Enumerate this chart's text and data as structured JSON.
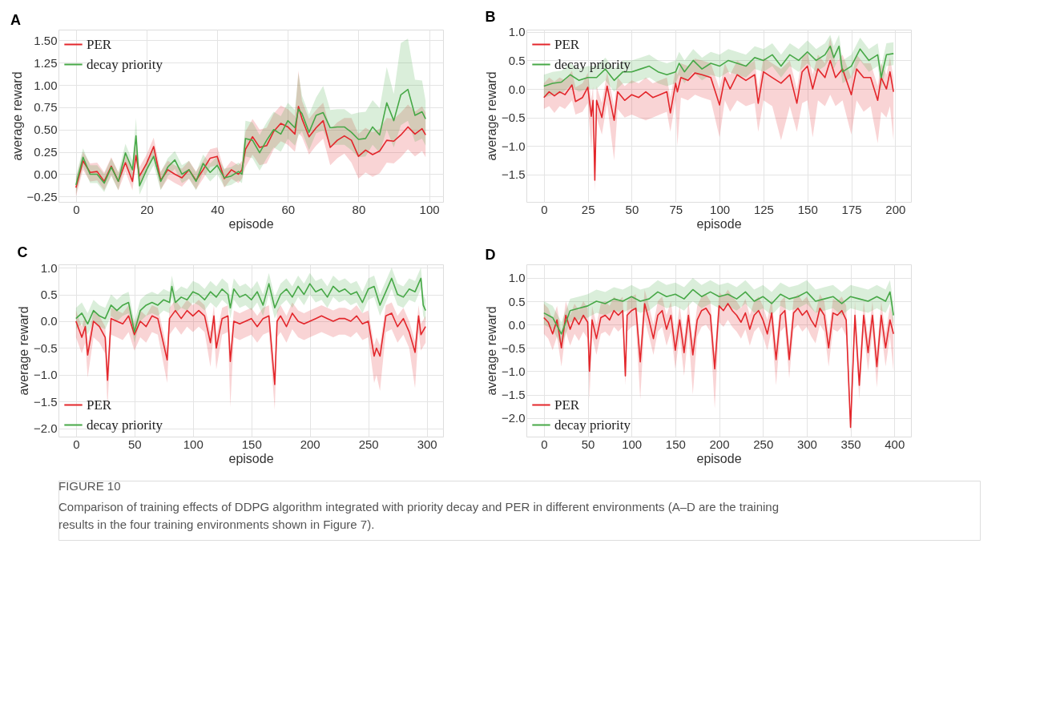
{
  "chart_data": [
    {
      "type": "line",
      "title": "A",
      "xlabel": "episode",
      "ylabel": "average reward",
      "xlim": [
        -4.95,
        103.95
      ],
      "xticks": [
        0,
        20,
        40,
        60,
        80,
        100
      ],
      "ylim": [
        -0.31,
        1.62
      ],
      "yticks": [
        {
          "value": -0.25,
          "label": "−0.25"
        },
        {
          "value": 0,
          "label": "0.00"
        },
        {
          "value": 0.25,
          "label": "0.25"
        },
        {
          "value": 0.5,
          "label": "0.50"
        },
        {
          "value": 0.75,
          "label": "0.75"
        },
        {
          "value": 1,
          "label": "1.00"
        },
        {
          "value": 1.25,
          "label": "1.25"
        },
        {
          "value": 1.5,
          "label": "1.50"
        }
      ],
      "grid": true,
      "legend": "top left",
      "line_style": "solid",
      "marker": "none",
      "annotations": [
        "FIGURE 10",
        "Comparison of training effects of DDPG algorithm integrated with priority decay and PER in different environments (A–D are the training results in the four training environments shown in Figure 7)."
      ],
      "series": [
        {
          "name": "PER",
          "color": "#e3262b",
          "x": [
            0,
            2,
            4,
            6,
            8,
            10,
            12,
            14,
            16,
            17,
            18,
            20,
            22,
            24,
            26,
            28,
            30,
            32,
            34,
            36,
            38,
            40,
            42,
            44,
            46,
            47,
            48,
            50,
            52,
            54,
            56,
            58,
            60,
            62,
            63,
            64,
            66,
            68,
            70,
            72,
            74,
            76,
            78,
            80,
            82,
            84,
            86,
            88,
            90,
            92,
            94,
            96,
            98,
            99
          ],
          "values": [
            -0.15,
            0.15,
            0.02,
            0.03,
            -0.08,
            0.09,
            -0.08,
            0.13,
            -0.08,
            0.21,
            -0.02,
            0.12,
            0.31,
            -0.07,
            0.05,
            0.0,
            -0.04,
            0.05,
            -0.07,
            0.05,
            0.18,
            0.2,
            -0.05,
            0.05,
            0.0,
            0.05,
            0.28,
            0.42,
            0.3,
            0.32,
            0.48,
            0.57,
            0.53,
            0.45,
            0.76,
            0.62,
            0.42,
            0.52,
            0.6,
            0.3,
            0.38,
            0.43,
            0.38,
            0.2,
            0.27,
            0.22,
            0.26,
            0.38,
            0.37,
            0.44,
            0.53,
            0.45,
            0.51,
            0.44
          ],
          "lower": [
            -0.25,
            0.05,
            -0.08,
            -0.07,
            -0.18,
            -0.01,
            -0.18,
            0.03,
            -0.18,
            0.11,
            -0.12,
            0.02,
            0.21,
            -0.17,
            -0.05,
            -0.1,
            -0.14,
            -0.05,
            -0.17,
            -0.05,
            0.08,
            0.1,
            -0.15,
            -0.05,
            -0.1,
            -0.05,
            0.08,
            0.22,
            0.1,
            0.12,
            0.28,
            0.37,
            0.33,
            0.25,
            0.46,
            0.42,
            0.22,
            0.32,
            0.4,
            0.1,
            0.18,
            0.23,
            0.13,
            -0.05,
            0.02,
            -0.03,
            0.01,
            0.13,
            0.12,
            0.19,
            0.28,
            0.2,
            0.26,
            0.19
          ],
          "upper": [
            -0.05,
            0.25,
            0.12,
            0.13,
            0.02,
            0.19,
            0.02,
            0.23,
            0.02,
            0.31,
            0.08,
            0.22,
            0.41,
            0.03,
            0.15,
            0.1,
            0.06,
            0.15,
            0.03,
            0.15,
            0.28,
            0.3,
            0.05,
            0.15,
            0.1,
            0.15,
            0.48,
            0.62,
            0.5,
            0.52,
            0.68,
            0.77,
            0.73,
            0.65,
            1.16,
            0.82,
            0.62,
            0.72,
            0.8,
            0.5,
            0.58,
            0.63,
            0.63,
            0.45,
            0.52,
            0.47,
            0.51,
            0.63,
            0.62,
            0.69,
            0.78,
            0.7,
            0.76,
            0.69
          ]
        },
        {
          "name": "decay priority",
          "color": "#47a847",
          "x": [
            0,
            2,
            4,
            6,
            8,
            10,
            12,
            14,
            16,
            17,
            18,
            20,
            22,
            24,
            26,
            28,
            30,
            32,
            34,
            36,
            38,
            40,
            42,
            44,
            46,
            47,
            48,
            50,
            52,
            54,
            56,
            58,
            60,
            62,
            63,
            64,
            66,
            68,
            70,
            72,
            74,
            76,
            78,
            80,
            82,
            84,
            86,
            88,
            90,
            92,
            94,
            96,
            98,
            99
          ],
          "values": [
            -0.12,
            0.19,
            0.0,
            0.0,
            -0.1,
            0.08,
            -0.08,
            0.24,
            0.05,
            0.43,
            -0.13,
            0.05,
            0.2,
            -0.08,
            0.08,
            0.16,
            0.0,
            0.05,
            -0.08,
            0.12,
            0.02,
            0.1,
            -0.04,
            -0.02,
            0.03,
            0.0,
            0.4,
            0.38,
            0.24,
            0.38,
            0.5,
            0.45,
            0.6,
            0.52,
            0.73,
            0.68,
            0.47,
            0.66,
            0.69,
            0.52,
            0.53,
            0.53,
            0.47,
            0.39,
            0.4,
            0.53,
            0.44,
            0.8,
            0.6,
            0.89,
            0.95,
            0.66,
            0.7,
            0.62
          ],
          "lower": [
            -0.22,
            0.09,
            -0.1,
            -0.1,
            -0.2,
            -0.02,
            -0.18,
            0.14,
            -0.05,
            0.23,
            -0.23,
            -0.05,
            0.1,
            -0.18,
            -0.02,
            0.06,
            -0.1,
            -0.05,
            -0.18,
            0.02,
            -0.08,
            0.0,
            -0.14,
            -0.12,
            -0.07,
            -0.1,
            0.2,
            0.18,
            0.04,
            0.18,
            0.3,
            0.25,
            0.4,
            0.32,
            0.43,
            0.48,
            0.27,
            0.46,
            0.49,
            0.32,
            0.33,
            0.33,
            0.27,
            0.19,
            0.2,
            0.33,
            0.24,
            0.5,
            0.3,
            0.55,
            0.6,
            0.36,
            0.4,
            0.32
          ],
          "upper": [
            -0.02,
            0.29,
            0.1,
            0.1,
            0.0,
            0.18,
            0.02,
            0.34,
            0.15,
            0.63,
            -0.03,
            0.15,
            0.3,
            0.02,
            0.18,
            0.26,
            0.1,
            0.15,
            0.02,
            0.22,
            0.12,
            0.2,
            0.06,
            0.08,
            0.13,
            0.1,
            0.6,
            0.58,
            0.44,
            0.58,
            0.7,
            0.65,
            0.8,
            0.72,
            1.13,
            0.88,
            0.67,
            0.86,
            0.99,
            0.72,
            0.73,
            0.73,
            0.67,
            0.69,
            0.7,
            0.83,
            0.74,
            1.2,
            0.9,
            1.47,
            1.52,
            1.06,
            1.05,
            0.82
          ]
        }
      ]
    },
    {
      "type": "line",
      "title": "B",
      "xlabel": "episode",
      "ylabel": "average reward",
      "xlim": [
        -9.95,
        208.95
      ],
      "xticks": [
        0,
        25,
        50,
        75,
        100,
        125,
        150,
        175,
        200
      ],
      "ylim": [
        -1.98,
        1.04
      ],
      "yticks": [
        {
          "value": -1.5,
          "label": "−1.5"
        },
        {
          "value": -1,
          "label": "−1.0"
        },
        {
          "value": -0.5,
          "label": "−0.5"
        },
        {
          "value": 0,
          "label": "0.0"
        },
        {
          "value": 0.5,
          "label": "0.5"
        },
        {
          "value": 1,
          "label": "1.0"
        }
      ],
      "grid": true,
      "legend": "top left",
      "line_style": "solid",
      "marker": "none",
      "series": [
        {
          "name": "PER",
          "color": "#e3262b",
          "x": [
            0,
            3,
            6,
            9,
            12,
            16,
            18,
            22,
            25,
            27,
            28,
            29,
            30,
            33,
            36,
            40,
            42,
            46,
            50,
            54,
            58,
            62,
            66,
            70,
            72,
            75,
            76,
            78,
            82,
            86,
            90,
            95,
            100,
            103,
            106,
            110,
            115,
            120,
            122,
            125,
            130,
            135,
            140,
            144,
            147,
            150,
            153,
            156,
            160,
            163,
            166,
            170,
            175,
            178,
            182,
            186,
            190,
            192,
            195,
            197,
            199
          ],
          "values": [
            -0.15,
            -0.05,
            -0.12,
            -0.05,
            -0.1,
            0.07,
            -0.22,
            -0.15,
            0.03,
            -0.48,
            -0.2,
            -1.6,
            -0.2,
            -0.5,
            0.05,
            -0.55,
            -0.05,
            -0.2,
            -0.1,
            -0.15,
            -0.05,
            -0.15,
            -0.1,
            -0.05,
            -0.42,
            0.1,
            -0.05,
            0.2,
            0.15,
            0.28,
            0.25,
            0.2,
            -0.28,
            0.2,
            0.0,
            0.25,
            0.15,
            0.25,
            -0.25,
            0.3,
            0.2,
            0.1,
            0.25,
            -0.25,
            0.3,
            0.4,
            0.0,
            0.35,
            0.2,
            0.5,
            0.2,
            0.35,
            -0.1,
            0.35,
            0.2,
            0.2,
            -0.2,
            0.2,
            0.0,
            0.3,
            -0.05
          ],
          "lower": [
            -0.35,
            -0.3,
            -0.42,
            -0.3,
            -0.35,
            -0.2,
            -0.45,
            -0.4,
            -0.25,
            -1.1,
            -0.5,
            -1.8,
            -0.5,
            -0.8,
            -0.25,
            -1.25,
            -0.35,
            -0.5,
            -0.45,
            -0.5,
            -0.55,
            -0.5,
            -0.45,
            -0.4,
            -0.75,
            -0.2,
            -1.0,
            -0.15,
            -0.2,
            -0.1,
            -0.15,
            -0.2,
            -0.85,
            -0.2,
            -0.4,
            -0.2,
            -0.3,
            -0.25,
            -0.75,
            -0.2,
            -0.3,
            -0.9,
            -0.3,
            -0.75,
            -0.25,
            -0.2,
            -0.85,
            -0.2,
            -0.3,
            -0.1,
            -0.3,
            -0.2,
            -0.8,
            -0.2,
            -0.4,
            -0.3,
            -0.95,
            -0.4,
            -0.5,
            -0.3,
            -0.9
          ],
          "upper": [
            0.1,
            0.2,
            0.13,
            0.2,
            0.15,
            0.32,
            0.03,
            0.1,
            0.28,
            -0.2,
            0.05,
            -1.4,
            0.05,
            -0.25,
            0.3,
            -0.3,
            0.2,
            0.05,
            0.15,
            0.1,
            0.2,
            0.1,
            0.15,
            0.2,
            -0.15,
            0.35,
            0.25,
            0.45,
            0.4,
            0.53,
            0.5,
            0.45,
            0.0,
            0.45,
            0.25,
            0.5,
            0.4,
            0.5,
            0.0,
            0.55,
            0.45,
            0.35,
            0.5,
            0.0,
            0.55,
            0.65,
            0.25,
            0.6,
            0.45,
            0.9,
            0.45,
            0.6,
            0.2,
            0.6,
            0.45,
            0.45,
            0.05,
            0.45,
            0.25,
            0.55,
            0.2
          ]
        },
        {
          "name": "decay priority",
          "color": "#47a847",
          "x": [
            0,
            5,
            10,
            15,
            20,
            25,
            30,
            35,
            40,
            45,
            50,
            55,
            60,
            65,
            70,
            75,
            77,
            80,
            85,
            90,
            95,
            100,
            105,
            110,
            115,
            120,
            125,
            130,
            135,
            140,
            145,
            150,
            155,
            160,
            163,
            165,
            168,
            170,
            175,
            180,
            185,
            190,
            192,
            195,
            199
          ],
          "values": [
            0.05,
            0.1,
            0.12,
            0.25,
            0.15,
            0.2,
            0.2,
            0.35,
            0.15,
            0.3,
            0.3,
            0.35,
            0.4,
            0.3,
            0.25,
            0.3,
            0.45,
            0.3,
            0.5,
            0.35,
            0.45,
            0.4,
            0.5,
            0.45,
            0.4,
            0.55,
            0.5,
            0.6,
            0.4,
            0.6,
            0.5,
            0.65,
            0.5,
            0.6,
            0.75,
            0.55,
            0.75,
            0.3,
            0.4,
            0.7,
            0.5,
            0.6,
            0.2,
            0.6,
            0.62
          ],
          "lower": [
            -0.15,
            -0.1,
            -0.08,
            0.05,
            -0.05,
            0.0,
            0.0,
            0.15,
            -0.05,
            0.1,
            0.1,
            0.15,
            0.2,
            0.1,
            0.05,
            0.1,
            0.25,
            0.1,
            0.3,
            0.15,
            0.25,
            0.2,
            0.3,
            0.25,
            0.2,
            0.35,
            0.3,
            0.4,
            0.2,
            0.4,
            0.3,
            0.45,
            0.3,
            0.4,
            0.55,
            0.35,
            0.55,
            0.1,
            0.2,
            0.5,
            0.3,
            0.4,
            0.0,
            0.4,
            0.42
          ],
          "upper": [
            0.25,
            0.3,
            0.32,
            0.45,
            0.35,
            0.4,
            0.4,
            0.55,
            0.35,
            0.5,
            0.5,
            0.55,
            0.6,
            0.5,
            0.45,
            0.5,
            0.65,
            0.5,
            0.7,
            0.55,
            0.65,
            0.6,
            0.7,
            0.65,
            0.6,
            0.75,
            0.7,
            0.8,
            0.6,
            0.8,
            0.7,
            0.85,
            0.7,
            0.8,
            0.95,
            0.75,
            0.95,
            0.5,
            0.6,
            0.9,
            0.7,
            0.8,
            0.4,
            0.8,
            0.82
          ]
        }
      ]
    },
    {
      "type": "line",
      "title": "C",
      "xlabel": "episode",
      "ylabel": "average reward",
      "xlim": [
        -14.95,
        313.95
      ],
      "xticks": [
        0,
        50,
        100,
        150,
        200,
        250,
        300
      ],
      "ylim": [
        -2.15,
        1.06
      ],
      "yticks": [
        {
          "value": -2,
          "label": "−2.0"
        },
        {
          "value": -1.5,
          "label": "−1.5"
        },
        {
          "value": -1,
          "label": "−1.0"
        },
        {
          "value": -0.5,
          "label": "−0.5"
        },
        {
          "value": 0,
          "label": "0.0"
        },
        {
          "value": 0.5,
          "label": "0.5"
        },
        {
          "value": 1,
          "label": "1.0"
        }
      ],
      "grid": true,
      "legend": "bottom left",
      "line_style": "solid",
      "marker": "none",
      "series": [
        {
          "name": "PER",
          "color": "#e3262b",
          "x": [
            0,
            5,
            8,
            10,
            15,
            20,
            25,
            27,
            30,
            35,
            40,
            45,
            50,
            55,
            60,
            65,
            70,
            78,
            80,
            85,
            90,
            95,
            100,
            105,
            110,
            115,
            118,
            120,
            125,
            130,
            132,
            135,
            140,
            145,
            150,
            155,
            160,
            165,
            170,
            172,
            175,
            180,
            185,
            190,
            195,
            200,
            205,
            210,
            215,
            220,
            225,
            230,
            235,
            240,
            245,
            250,
            255,
            257,
            260,
            265,
            270,
            275,
            280,
            285,
            290,
            293,
            295,
            299
          ],
          "values": [
            0.0,
            -0.3,
            -0.1,
            -0.63,
            0.0,
            -0.1,
            -0.3,
            -1.1,
            0.05,
            0.0,
            -0.05,
            0.1,
            -0.25,
            0.0,
            -0.1,
            0.1,
            0.05,
            -0.72,
            0.05,
            0.2,
            0.05,
            0.2,
            0.1,
            0.2,
            0.1,
            -0.4,
            0.1,
            -0.5,
            0.05,
            0.1,
            -0.75,
            0.0,
            -0.05,
            0.0,
            0.05,
            -0.1,
            0.05,
            0.1,
            -1.18,
            0.0,
            0.1,
            -0.1,
            0.15,
            0.0,
            -0.05,
            0.0,
            0.05,
            0.1,
            0.05,
            0.0,
            0.05,
            0.05,
            0.0,
            0.1,
            -0.05,
            0.0,
            -0.65,
            -0.5,
            -0.65,
            0.1,
            0.15,
            -0.1,
            0.05,
            -0.2,
            -0.58,
            0.1,
            -0.25,
            -0.1
          ],
          "lower": [
            -0.3,
            -0.6,
            -0.4,
            -1.05,
            -0.3,
            -0.4,
            -0.6,
            -1.6,
            -0.25,
            -0.3,
            -0.35,
            -0.2,
            -0.55,
            -0.3,
            -0.4,
            -0.2,
            -0.25,
            -1.15,
            -0.25,
            -0.1,
            -0.25,
            -0.1,
            -0.2,
            -0.1,
            -0.2,
            -0.85,
            -0.2,
            -0.9,
            -0.25,
            -0.2,
            -1.6,
            -0.3,
            -0.35,
            -0.3,
            -0.25,
            -0.4,
            -0.25,
            -0.2,
            -1.65,
            -0.3,
            -0.2,
            -0.4,
            -0.15,
            -0.3,
            -0.35,
            -0.3,
            -0.25,
            -0.2,
            -0.25,
            -0.3,
            -0.25,
            -0.25,
            -0.3,
            -0.2,
            -0.35,
            -0.3,
            -1.15,
            -1.0,
            -1.3,
            -0.2,
            -0.15,
            -0.4,
            -0.25,
            -0.5,
            -1.25,
            -0.2,
            -0.55,
            -0.4
          ],
          "upper": [
            0.2,
            -0.1,
            0.1,
            -0.43,
            0.2,
            0.1,
            -0.1,
            -0.9,
            0.25,
            0.2,
            0.15,
            0.3,
            -0.05,
            0.2,
            0.1,
            0.3,
            0.25,
            -0.52,
            0.25,
            0.4,
            0.25,
            0.4,
            0.3,
            0.4,
            0.3,
            -0.2,
            0.3,
            -0.3,
            0.25,
            0.3,
            -0.55,
            0.2,
            0.15,
            0.2,
            0.25,
            0.1,
            0.25,
            0.3,
            -0.98,
            0.2,
            0.3,
            0.1,
            0.35,
            0.2,
            0.15,
            0.2,
            0.25,
            0.3,
            0.25,
            0.2,
            0.25,
            0.25,
            0.2,
            0.3,
            0.15,
            0.2,
            -0.45,
            -0.3,
            -0.45,
            0.3,
            0.35,
            0.1,
            0.25,
            0.0,
            -0.38,
            0.3,
            -0.05,
            0.1
          ]
        },
        {
          "name": "decay priority",
          "color": "#47a847",
          "x": [
            0,
            5,
            10,
            15,
            20,
            25,
            30,
            35,
            40,
            45,
            50,
            55,
            60,
            65,
            70,
            75,
            80,
            82,
            85,
            90,
            95,
            100,
            105,
            110,
            115,
            120,
            125,
            130,
            132,
            135,
            140,
            145,
            150,
            155,
            160,
            165,
            170,
            175,
            180,
            185,
            190,
            195,
            200,
            205,
            210,
            215,
            220,
            225,
            230,
            235,
            240,
            245,
            250,
            255,
            260,
            265,
            270,
            275,
            280,
            285,
            290,
            295,
            297,
            299
          ],
          "values": [
            0.05,
            0.15,
            -0.05,
            0.2,
            0.1,
            0.05,
            0.3,
            0.2,
            0.3,
            0.35,
            -0.2,
            0.2,
            0.3,
            0.35,
            0.3,
            0.4,
            0.35,
            0.65,
            0.35,
            0.45,
            0.4,
            0.55,
            0.5,
            0.4,
            0.55,
            0.45,
            0.6,
            0.5,
            0.25,
            0.6,
            0.45,
            0.5,
            0.4,
            0.55,
            0.3,
            0.7,
            0.25,
            0.5,
            0.6,
            0.45,
            0.65,
            0.5,
            0.7,
            0.55,
            0.6,
            0.45,
            0.65,
            0.55,
            0.6,
            0.5,
            0.55,
            0.35,
            0.6,
            0.65,
            0.3,
            0.55,
            0.8,
            0.5,
            0.45,
            0.6,
            0.55,
            0.8,
            0.3,
            0.2
          ],
          "lower": [
            -0.15,
            -0.05,
            -0.25,
            0.0,
            -0.1,
            -0.15,
            0.1,
            0.0,
            0.1,
            0.15,
            -0.4,
            0.0,
            0.1,
            0.15,
            0.1,
            0.2,
            0.15,
            0.45,
            0.15,
            0.25,
            0.2,
            0.35,
            0.3,
            0.2,
            0.35,
            0.25,
            0.4,
            0.3,
            0.05,
            0.4,
            0.25,
            0.3,
            0.2,
            0.35,
            0.1,
            0.5,
            0.05,
            0.3,
            0.4,
            0.25,
            0.45,
            0.3,
            0.5,
            0.35,
            0.4,
            0.25,
            0.45,
            0.35,
            0.4,
            0.3,
            0.35,
            0.15,
            0.4,
            0.45,
            0.1,
            0.35,
            0.6,
            0.3,
            0.25,
            0.4,
            0.35,
            0.6,
            0.1,
            0.0
          ],
          "upper": [
            0.25,
            0.35,
            0.15,
            0.4,
            0.3,
            0.25,
            0.5,
            0.4,
            0.5,
            0.55,
            0.0,
            0.4,
            0.5,
            0.55,
            0.5,
            0.6,
            0.55,
            0.85,
            0.55,
            0.65,
            0.6,
            0.75,
            0.7,
            0.6,
            0.75,
            0.65,
            0.8,
            0.7,
            0.45,
            0.8,
            0.65,
            0.7,
            0.6,
            0.75,
            0.5,
            0.9,
            0.45,
            0.7,
            0.8,
            0.65,
            0.85,
            0.7,
            0.9,
            0.75,
            0.8,
            0.65,
            0.85,
            0.75,
            0.8,
            0.7,
            0.75,
            0.55,
            0.8,
            0.85,
            0.5,
            0.75,
            1.0,
            0.7,
            0.65,
            0.8,
            0.75,
            1.0,
            0.5,
            0.4
          ]
        }
      ]
    },
    {
      "type": "line",
      "title": "D",
      "xlabel": "episode",
      "ylabel": "average reward",
      "xlim": [
        -19.95,
        418.95
      ],
      "xticks": [
        0,
        50,
        100,
        150,
        200,
        250,
        300,
        350,
        400
      ],
      "ylim": [
        -2.4,
        1.29
      ],
      "yticks": [
        {
          "value": -2,
          "label": "−2.0"
        },
        {
          "value": -1.5,
          "label": "−1.5"
        },
        {
          "value": -1,
          "label": "−1.0"
        },
        {
          "value": -0.5,
          "label": "−0.5"
        },
        {
          "value": 0,
          "label": "0.0"
        },
        {
          "value": 0.5,
          "label": "0.5"
        },
        {
          "value": 1,
          "label": "1.0"
        }
      ],
      "grid": true,
      "legend": "bottom left",
      "line_style": "solid",
      "marker": "none",
      "series": [
        {
          "name": "PER",
          "color": "#e3262b",
          "x": [
            0,
            5,
            10,
            15,
            20,
            25,
            30,
            35,
            40,
            45,
            50,
            52,
            55,
            60,
            65,
            70,
            75,
            80,
            85,
            90,
            93,
            95,
            100,
            105,
            110,
            115,
            120,
            125,
            130,
            135,
            140,
            145,
            150,
            155,
            160,
            165,
            170,
            175,
            180,
            185,
            190,
            195,
            200,
            205,
            210,
            215,
            220,
            225,
            230,
            235,
            240,
            245,
            250,
            255,
            260,
            265,
            270,
            275,
            280,
            285,
            290,
            295,
            300,
            305,
            310,
            315,
            320,
            325,
            330,
            335,
            340,
            345,
            350,
            355,
            360,
            365,
            370,
            375,
            380,
            385,
            390,
            395,
            399
          ],
          "values": [
            0.15,
            0.05,
            -0.2,
            0.1,
            -0.5,
            0.2,
            -0.1,
            0.15,
            0.0,
            0.2,
            0.05,
            -1.0,
            0.1,
            -0.3,
            0.15,
            0.2,
            0.1,
            0.3,
            0.2,
            0.3,
            -1.1,
            0.2,
            0.3,
            0.35,
            -0.8,
            0.45,
            0.1,
            -0.3,
            0.2,
            0.3,
            -0.1,
            0.2,
            -0.55,
            0.1,
            -0.6,
            0.2,
            -0.65,
            0.1,
            0.3,
            0.35,
            0.2,
            -0.95,
            0.4,
            0.3,
            0.45,
            0.3,
            0.2,
            0.05,
            0.25,
            -0.1,
            0.2,
            0.3,
            0.1,
            -0.2,
            0.25,
            -0.75,
            0.2,
            0.3,
            -0.75,
            0.25,
            0.35,
            0.2,
            0.3,
            0.1,
            -0.05,
            0.35,
            0.2,
            -0.5,
            0.25,
            0.2,
            0.3,
            0.1,
            -2.2,
            0.2,
            -1.3,
            0.2,
            -0.6,
            0.2,
            -0.9,
            0.2,
            -0.5,
            0.1,
            -0.2
          ],
          "lower": [
            -0.2,
            -0.3,
            -0.55,
            -0.25,
            -0.9,
            -0.15,
            -0.45,
            -0.2,
            -0.35,
            -0.15,
            -0.3,
            -1.6,
            -0.25,
            -0.65,
            -0.2,
            -0.15,
            -0.25,
            -0.05,
            -0.15,
            -0.05,
            -1.3,
            -0.15,
            -0.05,
            0.0,
            -1.6,
            0.1,
            -0.25,
            -0.65,
            -0.15,
            -0.05,
            -0.45,
            -0.15,
            -0.95,
            -0.25,
            -1.1,
            -0.15,
            -1.5,
            -0.25,
            -0.05,
            0.0,
            -0.15,
            -1.8,
            0.05,
            -0.05,
            0.1,
            -0.05,
            -0.15,
            -0.3,
            -0.1,
            -0.45,
            -0.15,
            -0.05,
            -0.25,
            -0.55,
            -0.1,
            -1.3,
            -0.15,
            -0.05,
            -1.15,
            -0.1,
            0.0,
            -0.15,
            -0.05,
            -0.25,
            -0.4,
            0.0,
            -0.15,
            -0.9,
            -0.1,
            -0.15,
            -0.05,
            -0.25,
            -2.3,
            -0.15,
            -1.6,
            -0.15,
            -1.0,
            -0.15,
            -1.35,
            -0.15,
            -0.9,
            -0.25,
            -1.0
          ],
          "upper": [
            0.45,
            0.35,
            0.1,
            0.4,
            -0.2,
            0.5,
            0.2,
            0.45,
            0.3,
            0.5,
            0.35,
            -0.7,
            0.4,
            0.0,
            0.45,
            0.5,
            0.4,
            0.6,
            0.5,
            0.6,
            -0.8,
            0.5,
            0.6,
            0.65,
            -0.5,
            0.75,
            0.4,
            0.0,
            0.5,
            0.6,
            0.2,
            0.5,
            -0.25,
            0.4,
            -0.3,
            0.5,
            -0.35,
            0.4,
            0.6,
            0.65,
            0.5,
            -0.65,
            0.7,
            0.6,
            0.75,
            0.6,
            0.5,
            0.35,
            0.55,
            0.2,
            0.5,
            0.6,
            0.4,
            0.1,
            0.55,
            -0.45,
            0.5,
            0.6,
            -0.45,
            0.55,
            0.65,
            0.5,
            0.6,
            0.4,
            0.25,
            0.65,
            0.5,
            -0.2,
            0.55,
            0.5,
            0.6,
            0.4,
            -1.9,
            0.5,
            -1.0,
            0.5,
            -0.3,
            0.5,
            -0.6,
            0.5,
            -0.2,
            0.4,
            0.1
          ]
        },
        {
          "name": "decay priority",
          "color": "#47a847",
          "x": [
            0,
            10,
            20,
            30,
            40,
            50,
            60,
            70,
            80,
            90,
            100,
            110,
            120,
            130,
            140,
            150,
            160,
            170,
            180,
            190,
            200,
            210,
            220,
            230,
            240,
            250,
            260,
            270,
            280,
            290,
            300,
            310,
            320,
            330,
            340,
            350,
            360,
            370,
            380,
            390,
            395,
            399
          ],
          "values": [
            0.25,
            0.15,
            -0.2,
            0.3,
            0.35,
            0.4,
            0.5,
            0.45,
            0.55,
            0.5,
            0.6,
            0.5,
            0.55,
            0.7,
            0.6,
            0.65,
            0.55,
            0.75,
            0.6,
            0.7,
            0.6,
            0.65,
            0.55,
            0.7,
            0.5,
            0.6,
            0.45,
            0.65,
            0.55,
            0.6,
            0.7,
            0.5,
            0.55,
            0.6,
            0.45,
            0.6,
            0.55,
            0.5,
            0.6,
            0.5,
            0.7,
            0.2
          ],
          "lower": [
            0.0,
            -0.1,
            -0.45,
            0.05,
            0.1,
            0.15,
            0.25,
            0.2,
            0.3,
            0.25,
            0.35,
            0.25,
            0.3,
            0.45,
            0.35,
            0.4,
            0.3,
            0.5,
            0.35,
            0.45,
            0.35,
            0.4,
            0.3,
            0.45,
            0.25,
            0.35,
            0.2,
            0.4,
            0.3,
            0.35,
            0.45,
            0.25,
            0.3,
            0.35,
            0.2,
            0.35,
            0.3,
            0.25,
            0.35,
            0.25,
            0.45,
            -0.05
          ],
          "upper": [
            0.5,
            0.4,
            0.05,
            0.55,
            0.6,
            0.65,
            0.75,
            0.7,
            0.8,
            0.75,
            0.85,
            0.75,
            0.8,
            0.95,
            0.85,
            0.9,
            0.8,
            1.0,
            0.85,
            0.95,
            0.85,
            0.9,
            0.8,
            0.95,
            0.75,
            0.85,
            0.7,
            0.9,
            0.8,
            0.85,
            0.95,
            0.75,
            0.8,
            0.85,
            0.7,
            0.85,
            0.8,
            0.75,
            0.85,
            0.75,
            0.95,
            0.45
          ]
        }
      ]
    }
  ]
}
